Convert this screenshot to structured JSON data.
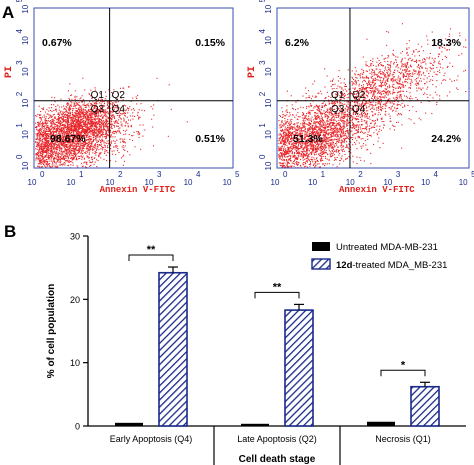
{
  "panel_a": {
    "letter": "A",
    "plots": [
      {
        "ylabel": "PI",
        "xlabel": "Annexin V-FITC",
        "x_ticks": [
          "0",
          "1",
          "2",
          "3",
          "4",
          "5"
        ],
        "y_ticks": [
          "0",
          "1",
          "2",
          "3",
          "4",
          "5"
        ],
        "tick_base": "10",
        "quadrant_labels": [
          "Q1",
          "Q2",
          "Q3",
          "Q4"
        ],
        "percentages": {
          "Q1": "0.67%",
          "Q2": "0.15%",
          "Q3": "98.67%",
          "Q4": "0.51%"
        },
        "dot_color": "#e8262a"
      },
      {
        "ylabel": "PI",
        "xlabel": "Annexin V-FITC",
        "x_ticks": [
          "0",
          "1",
          "2",
          "3",
          "4",
          "5"
        ],
        "y_ticks": [
          "0",
          "1",
          "2",
          "3",
          "4",
          "5"
        ],
        "tick_base": "10",
        "quadrant_labels": [
          "Q1",
          "Q2",
          "Q3",
          "Q4"
        ],
        "percentages": {
          "Q1": "6.2%",
          "Q2": "18.3%",
          "Q3": "51.3%",
          "Q4": "24.2%"
        },
        "dot_color": "#e8262a"
      }
    ]
  },
  "panel_b": {
    "letter": "B"
  },
  "chart_data": {
    "type": "bar",
    "ylabel": "% of cell population",
    "xlabel": "Cell death stage",
    "ylim": [
      0,
      30
    ],
    "y_ticks": [
      0,
      10,
      20,
      30
    ],
    "categories": [
      "Early Apoptosis (Q4)",
      "Late Apoptosis (Q2)",
      "Necrosis (Q1)"
    ],
    "series": [
      {
        "name": "Untreated MDA-MB-231",
        "values": [
          0.5,
          0.15,
          0.67
        ],
        "errors": [
          0,
          0,
          0
        ],
        "color": "#000000",
        "pattern": "solid"
      },
      {
        "name": "12d-treated MDA_MB-231",
        "name_bold_prefix": "12d",
        "name_rest": "-treated MDA_MB-231",
        "values": [
          24.2,
          18.3,
          6.2
        ],
        "errors": [
          0.9,
          0.9,
          0.7
        ],
        "color": "#1a2a8c",
        "pattern": "hatched"
      }
    ],
    "significance": [
      "**",
      "**",
      "*"
    ],
    "legend_position": "top-right"
  }
}
